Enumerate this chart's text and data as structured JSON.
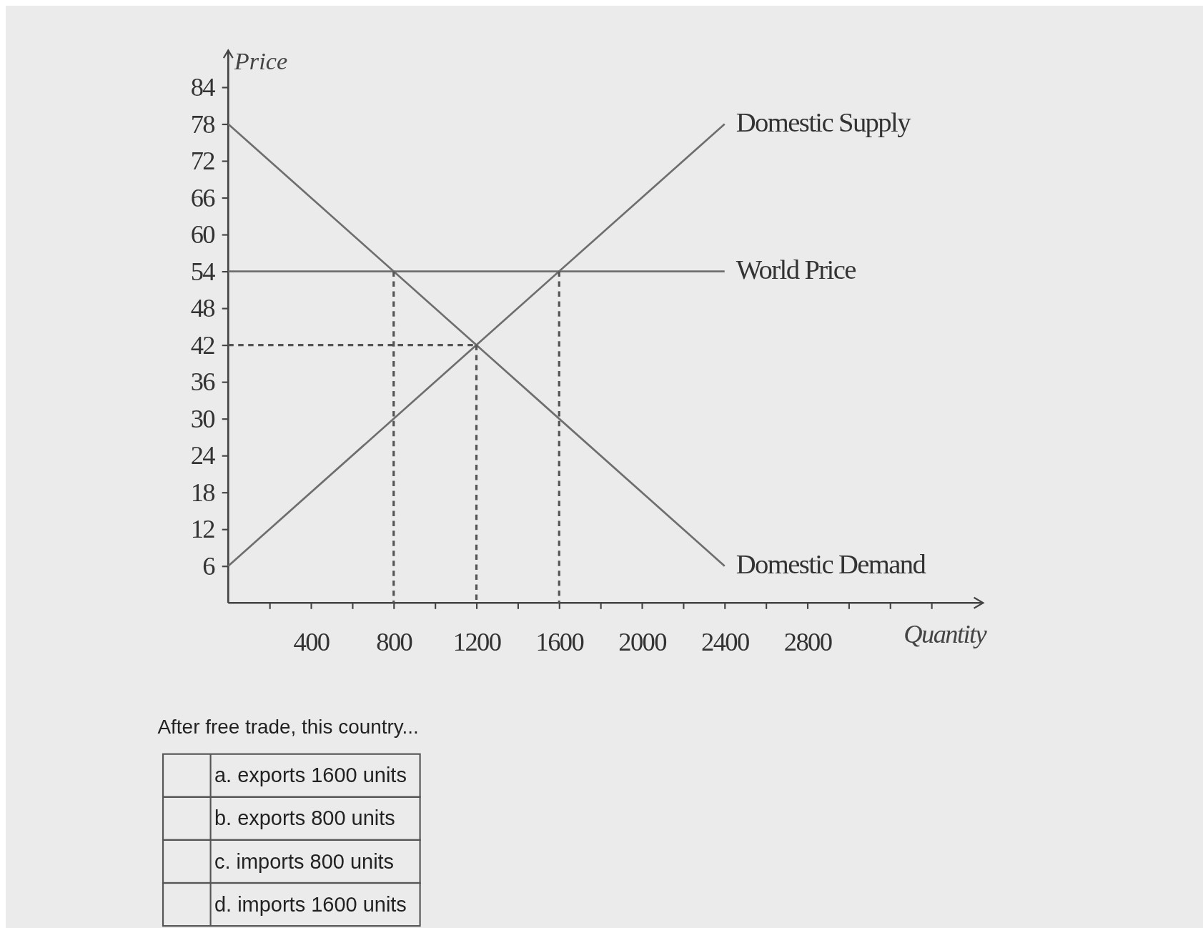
{
  "chart_data": {
    "type": "line",
    "ylabel": "Price",
    "xlabel": "Quantity",
    "xlim": [
      0,
      3650
    ],
    "ylim": [
      0,
      90
    ],
    "xticks": [
      {
        "value": 200,
        "label": null
      },
      400,
      {
        "value": 600,
        "label": null
      },
      800,
      {
        "value": 1000,
        "label": null
      },
      1200,
      {
        "value": 1400,
        "label": null
      },
      1600,
      {
        "value": 1800,
        "label": null
      },
      2000,
      {
        "value": 2200,
        "label": null
      },
      2400,
      {
        "value": 2600,
        "label": null
      },
      2800,
      {
        "value": 3000,
        "label": null
      },
      {
        "value": 3200,
        "label": null
      },
      {
        "value": 3400,
        "label": null
      }
    ],
    "yticks": [
      6,
      12,
      18,
      24,
      30,
      36,
      42,
      48,
      54,
      60,
      66,
      72,
      78,
      84
    ],
    "grid": false,
    "legend": false,
    "marker": "none",
    "series": [
      {
        "name": "Domestic Supply",
        "color": "#6e6e6e",
        "x": [
          0,
          2400
        ],
        "values": [
          6,
          78
        ],
        "line_style": "solid"
      },
      {
        "name": "World Price",
        "color": "#6e6e6e",
        "x": [
          0,
          2400
        ],
        "values": [
          54,
          54
        ],
        "line_style": "solid"
      },
      {
        "name": "Domestic Demand",
        "color": "#6e6e6e",
        "x": [
          0,
          2400
        ],
        "values": [
          78,
          6
        ],
        "line_style": "solid"
      },
      {
        "color": "#555555",
        "x": [
          800,
          800
        ],
        "values": [
          54,
          0
        ],
        "line_style": "dashed"
      },
      {
        "color": "#555555",
        "x": [
          1200,
          1200
        ],
        "values": [
          42,
          0
        ],
        "line_style": "dashed"
      },
      {
        "color": "#555555",
        "x": [
          1600,
          1600
        ],
        "values": [
          54,
          0
        ],
        "line_style": "dashed"
      },
      {
        "color": "#555555",
        "x": [
          0,
          1200
        ],
        "values": [
          42,
          42
        ],
        "line_style": "dashed"
      }
    ],
    "annotations": [
      "After free trade, this country...",
      "a. exports 1600 units",
      "b. exports 800 units",
      "c. imports 800 units",
      "d. imports 1600 units"
    ]
  }
}
